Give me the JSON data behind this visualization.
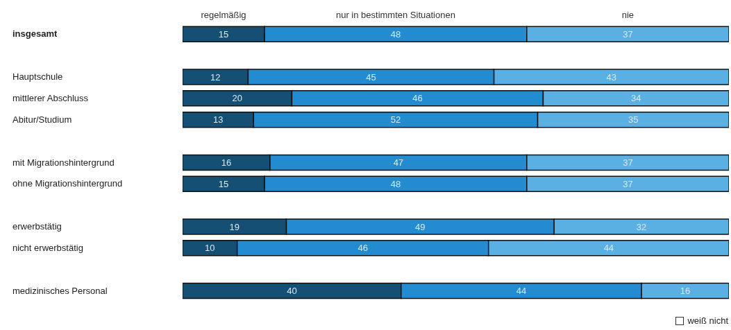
{
  "chart_data": {
    "type": "bar",
    "orientation": "horizontal",
    "stacked": true,
    "data_labels": true,
    "tick_labels": "y",
    "legend": "bottom right",
    "xlim": [
      0,
      100
    ],
    "categories": [
      "insgesamt",
      null,
      "Hauptschule",
      "mittlerer Abschluss",
      "Abitur/Studium",
      null,
      "mit Migrationshintergrund",
      "ohne Migrationshintergrund",
      null,
      "erwerbstätig",
      "nicht erwerbstätig",
      null,
      "medizinisches Personal"
    ],
    "series": [
      {
        "name": "regelmäßig",
        "color": "#154f73",
        "values": [
          15,
          null,
          12,
          20,
          13,
          null,
          16,
          15,
          null,
          19,
          10,
          null,
          40
        ]
      },
      {
        "name": "nur in bestimmten Situationen",
        "color": "#238bcf",
        "values": [
          48,
          null,
          45,
          46,
          52,
          null,
          47,
          48,
          null,
          49,
          46,
          null,
          44
        ]
      },
      {
        "name": "nie",
        "color": "#5aafe3",
        "values": [
          37,
          null,
          43,
          34,
          35,
          null,
          37,
          37,
          null,
          32,
          44,
          null,
          16
        ]
      },
      {
        "name": "weiß nicht",
        "color": "#ffffff",
        "values": [
          null,
          null,
          null,
          null,
          null,
          null,
          null,
          null,
          null,
          null,
          null,
          null,
          null
        ]
      }
    ]
  }
}
